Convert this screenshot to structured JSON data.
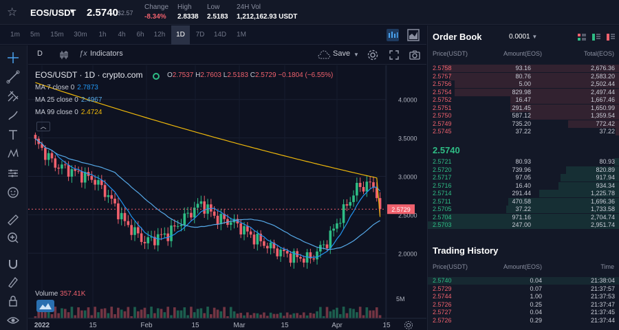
{
  "topbar": {
    "pair": "EOS/USDT",
    "price": "2.5740",
    "price_sub": "$2.57",
    "stats": [
      {
        "label": "Change",
        "value": "-8.34%",
        "down": true
      },
      {
        "label": "High",
        "value": "2.8338",
        "down": false
      },
      {
        "label": "Low",
        "value": "2.5183",
        "down": false
      },
      {
        "label": "24H Vol",
        "value": "1,212,162.93 USDT",
        "down": false
      }
    ]
  },
  "intervals": [
    "1m",
    "5m",
    "15m",
    "30m",
    "1h",
    "4h",
    "6h",
    "12h",
    "1D",
    "7D",
    "14D",
    "1M"
  ],
  "active_interval": "1D",
  "chart_toolbar": {
    "interval": "D",
    "indicators": "Indicators",
    "save": "Save"
  },
  "chart_legend": {
    "title": "EOS/USDT · 1D · crypto.com",
    "open_label": "O",
    "open": "2.7537",
    "high_label": "H",
    "high": "2.7603",
    "low_label": "L",
    "low": "2.5183",
    "close_label": "C",
    "close": "2.5729",
    "change": "−0.1804 (−6.55%)",
    "ma": [
      {
        "label": "MA 7 close 0",
        "value": "2.7873",
        "color": "#2196f3"
      },
      {
        "label": "MA 25 close 0",
        "value": "2.4967",
        "color": "#56a9e8"
      },
      {
        "label": "MA 99 close 0",
        "value": "2.4724",
        "color": "#f0b90b"
      }
    ],
    "volume_label": "Volume",
    "volume_value": "357.41K"
  },
  "chart_data": {
    "type": "line",
    "title": "EOS/USDT · 1D · crypto.com",
    "y_ticks": [
      "4.0000",
      "3.5000",
      "3.0000",
      "2.5000",
      "2.0000"
    ],
    "ylim": [
      1.6,
      4.4
    ],
    "x_ticks": [
      "2022",
      "15",
      "Feb",
      "15",
      "Mar",
      "15",
      "Apr",
      "15"
    ],
    "current_price_label": "2.5729",
    "volume_tick": "5M",
    "series": [
      {
        "name": "MA 7 close 0",
        "color": "#2196f3"
      },
      {
        "name": "MA 25 close 0",
        "color": "#56a9e8"
      },
      {
        "name": "MA 99 close 0",
        "color": "#f0b90b"
      }
    ]
  },
  "orderbook": {
    "title": "Order Book",
    "precision": "0.0001",
    "headers": [
      "Price(USDT)",
      "Amount(EOS)",
      "Total(EOS)"
    ],
    "asks": [
      {
        "price": "2.5758",
        "amount": "93.16",
        "total": "2,676.36",
        "depth": 0.92
      },
      {
        "price": "2.5757",
        "amount": "80.76",
        "total": "2,583.20",
        "depth": 0.89
      },
      {
        "price": "2.5756",
        "amount": "5.00",
        "total": "2,502.44",
        "depth": 0.86
      },
      {
        "price": "2.5754",
        "amount": "829.98",
        "total": "2,497.44",
        "depth": 0.86
      },
      {
        "price": "2.5752",
        "amount": "16.47",
        "total": "1,667.46",
        "depth": 0.57
      },
      {
        "price": "2.5751",
        "amount": "291.45",
        "total": "1,650.99",
        "depth": 0.57
      },
      {
        "price": "2.5750",
        "amount": "587.12",
        "total": "1,359.54",
        "depth": 0.47
      },
      {
        "price": "2.5749",
        "amount": "735.20",
        "total": "772.42",
        "depth": 0.27
      },
      {
        "price": "2.5745",
        "amount": "37.22",
        "total": "37.22",
        "depth": 0.02
      }
    ],
    "last_price": "2.5740",
    "bids": [
      {
        "price": "2.5721",
        "amount": "80.93",
        "total": "80.93",
        "depth": 0.03
      },
      {
        "price": "2.5720",
        "amount": "739.96",
        "total": "820.89",
        "depth": 0.28
      },
      {
        "price": "2.5717",
        "amount": "97.05",
        "total": "917.94",
        "depth": 0.31
      },
      {
        "price": "2.5716",
        "amount": "16.40",
        "total": "934.34",
        "depth": 0.32
      },
      {
        "price": "2.5714",
        "amount": "291.44",
        "total": "1,225.78",
        "depth": 0.42
      },
      {
        "price": "2.5711",
        "amount": "470.58",
        "total": "1,696.36",
        "depth": 0.58
      },
      {
        "price": "2.5705",
        "amount": "37.22",
        "total": "1,733.58",
        "depth": 0.59
      },
      {
        "price": "2.5704",
        "amount": "971.16",
        "total": "2,704.74",
        "depth": 0.92
      },
      {
        "price": "2.5703",
        "amount": "247.00",
        "total": "2,951.74",
        "depth": 1.0
      }
    ]
  },
  "trading_history": {
    "title": "Trading History",
    "headers": [
      "Price(USDT)",
      "Amount(EOS)",
      "Time"
    ],
    "rows": [
      {
        "price": "2.5740",
        "amount": "0.04",
        "time": "21:38:04",
        "up": true
      },
      {
        "price": "2.5729",
        "amount": "0.07",
        "time": "21:37:57",
        "up": false
      },
      {
        "price": "2.5744",
        "amount": "1.00",
        "time": "21:37:53",
        "up": false
      },
      {
        "price": "2.5726",
        "amount": "0.25",
        "time": "21:37:47",
        "up": false
      },
      {
        "price": "2.5727",
        "amount": "0.04",
        "time": "21:37:45",
        "up": false
      },
      {
        "price": "2.5726",
        "amount": "0.29",
        "time": "21:37:44",
        "up": false
      }
    ]
  },
  "colors": {
    "up": "#2ebd85",
    "down": "#f0616d",
    "bg": "#0e1221",
    "panel": "#131827"
  }
}
